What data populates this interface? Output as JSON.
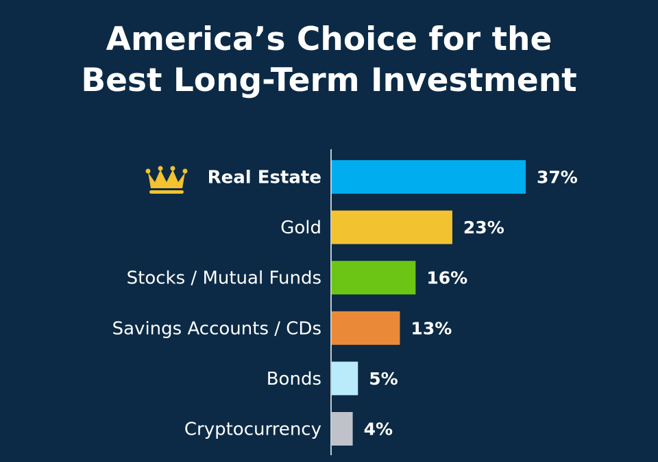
{
  "chart_data": {
    "type": "bar",
    "orientation": "horizontal",
    "title_lines": [
      "America’s Choice for the",
      "Best Long-Term Investment"
    ],
    "categories": [
      "Real Estate",
      "Gold",
      "Stocks / Mutual Funds",
      "Savings Accounts / CDs",
      "Bonds",
      "Cryptocurrency"
    ],
    "values": [
      37,
      23,
      16,
      13,
      5,
      4
    ],
    "value_labels": [
      "37%",
      "23%",
      "16%",
      "13%",
      "5%",
      "4%"
    ],
    "colors": [
      "#00aeef",
      "#f2c230",
      "#6cc515",
      "#ea8a39",
      "#b9ebfb",
      "#bfc3c9"
    ],
    "highlight": {
      "category": "Real Estate",
      "icon": "crown-icon",
      "icon_color": "#f2c230"
    },
    "background": "#0c2a45",
    "grid": false,
    "legend": "none"
  }
}
